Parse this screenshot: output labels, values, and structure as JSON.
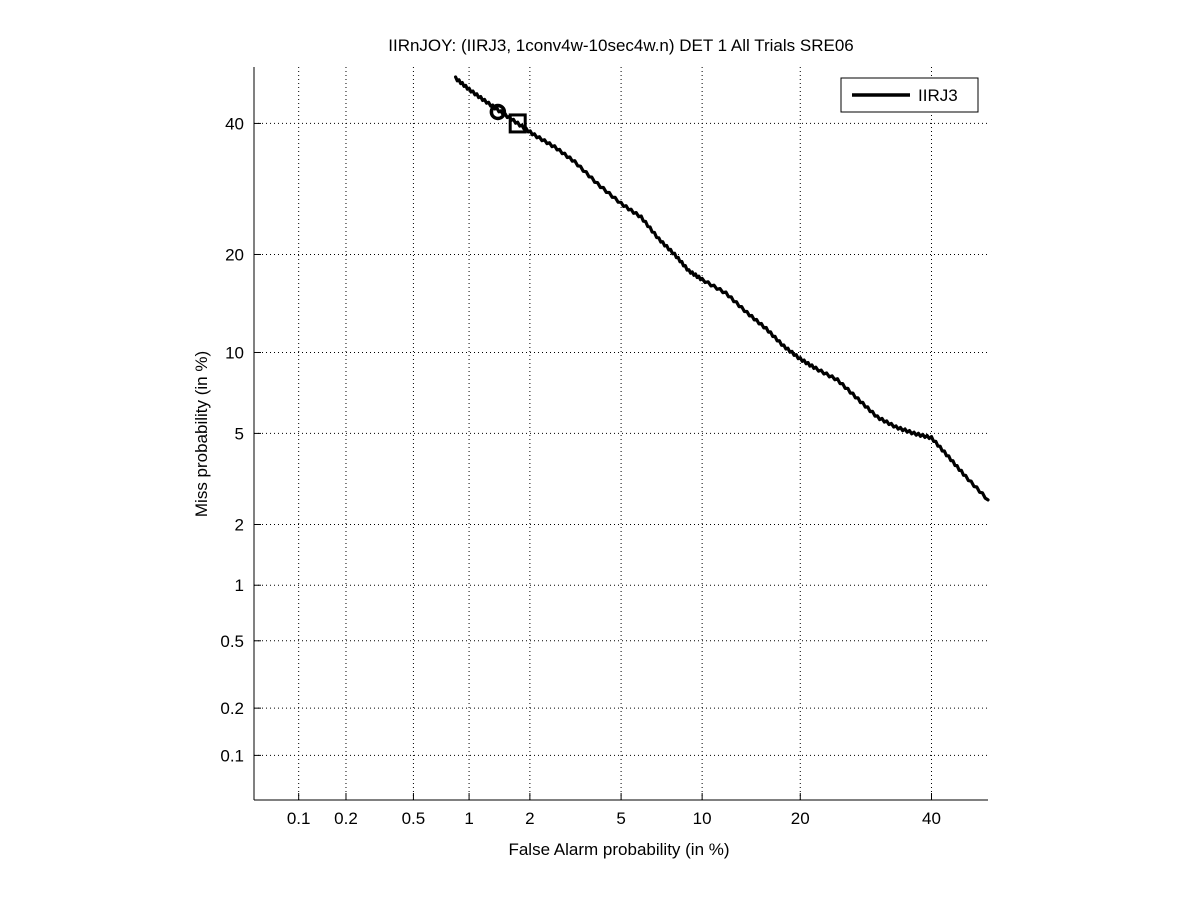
{
  "chart_data": {
    "type": "line",
    "title": "IIRnJOY: (IIRJ3, 1conv4w-10sec4w.n) DET 1 All Trials SRE06",
    "xlabel": "False Alarm probability (in %)",
    "ylabel": "Miss probability (in %)",
    "scale": "probit",
    "xlim": [
      0.05,
      50
    ],
    "ylim": [
      0.05,
      50
    ],
    "grid": true,
    "legend_position": "top-right",
    "x_ticks": [
      0.1,
      0.2,
      0.5,
      1,
      2,
      5,
      10,
      20,
      40
    ],
    "x_tick_labels": [
      "0.1",
      "0.2",
      "0.5",
      "1",
      "2",
      "5",
      "10",
      "20",
      "40"
    ],
    "y_ticks": [
      0.1,
      0.2,
      0.5,
      1,
      2,
      5,
      10,
      20,
      40
    ],
    "y_tick_labels": [
      "0.1",
      "0.2",
      "0.5",
      "1",
      "2",
      "5",
      "10",
      "20",
      "40"
    ],
    "series": [
      {
        "name": "IIRJ3",
        "color": "#000000",
        "x": [
          0.85,
          1.0,
          1.2,
          1.45,
          1.75,
          2.1,
          2.6,
          3.2,
          4.0,
          5.0,
          6.0,
          7.0,
          8.0,
          9.0,
          10.0,
          12.0,
          14.0,
          16.0,
          18.0,
          20.0,
          22.0,
          25.0,
          28.0,
          31.0,
          34.0,
          37.0,
          40.0,
          43.0,
          46.0,
          50.0
        ],
        "y": [
          48.0,
          46.0,
          44.0,
          42.0,
          40.0,
          38.0,
          36.0,
          33.5,
          30.0,
          27.0,
          25.0,
          22.0,
          20.0,
          18.0,
          17.0,
          15.5,
          13.5,
          12.0,
          10.5,
          9.5,
          8.8,
          8.0,
          6.8,
          5.8,
          5.3,
          5.0,
          4.8,
          4.0,
          3.3,
          2.6
        ]
      }
    ],
    "markers": [
      {
        "shape": "circle",
        "x": 1.4,
        "y": 42.0
      },
      {
        "shape": "square",
        "x": 1.75,
        "y": 40.0
      }
    ]
  }
}
